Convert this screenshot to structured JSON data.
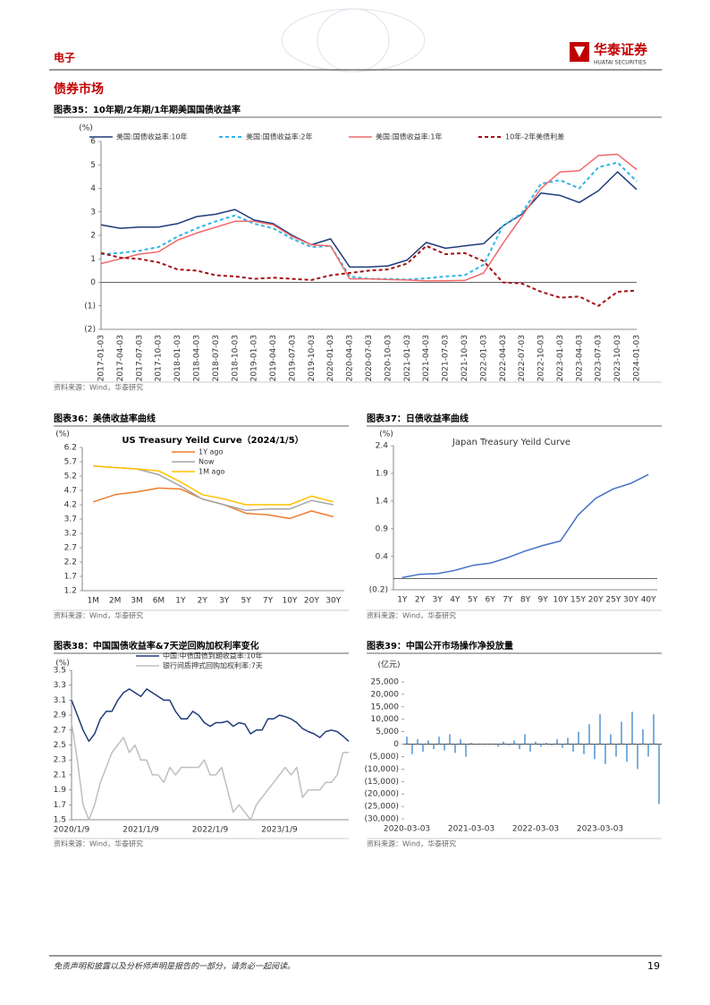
{
  "header": {
    "section": "电子",
    "logo": "华泰证券",
    "logo_en": "HUATAI SECURITIES"
  },
  "title": "债券市场",
  "chart_data": [
    {
      "type": "line",
      "caption": "图表35：10年期/2年期/1年期美国国债收益率",
      "source": "资料来源：Wind，华泰研究",
      "y_label": "(%)",
      "categories": [
        "2017-01-03",
        "2017-04-03",
        "2017-07-03",
        "2017-10-03",
        "2018-01-03",
        "2018-04-03",
        "2018-07-03",
        "2018-10-03",
        "2019-01-03",
        "2019-04-03",
        "2019-07-03",
        "2019-10-03",
        "2020-01-03",
        "2020-04-03",
        "2020-07-03",
        "2020-10-03",
        "2021-01-03",
        "2021-04-03",
        "2021-07-03",
        "2021-10-03",
        "2022-01-03",
        "2022-04-03",
        "2022-07-03",
        "2022-10-03",
        "2023-01-03",
        "2023-04-03",
        "2023-07-03",
        "2023-10-03",
        "2024-01-03"
      ],
      "series": [
        {
          "name": "美国:国债收益率:10年",
          "color": "#1f3b7a",
          "dash": false,
          "values": [
            2.45,
            2.3,
            2.35,
            2.35,
            2.5,
            2.8,
            2.9,
            3.1,
            2.65,
            2.5,
            2.0,
            1.6,
            1.85,
            0.65,
            0.65,
            0.7,
            0.95,
            1.7,
            1.45,
            1.55,
            1.65,
            2.4,
            2.9,
            3.8,
            3.7,
            3.4,
            3.9,
            4.7,
            3.95
          ]
        },
        {
          "name": "美国:国债收益率:2年",
          "color": "#33b5e5",
          "dash": true,
          "values": [
            1.2,
            1.25,
            1.35,
            1.5,
            1.95,
            2.3,
            2.6,
            2.85,
            2.5,
            2.3,
            1.85,
            1.5,
            1.55,
            0.25,
            0.15,
            0.15,
            0.12,
            0.17,
            0.25,
            0.3,
            0.75,
            2.4,
            2.95,
            4.2,
            4.35,
            4.0,
            4.9,
            5.1,
            4.3
          ]
        },
        {
          "name": "美国:国债收益率:1年",
          "color": "#f0686a",
          "dash": false,
          "values": [
            0.8,
            1.0,
            1.2,
            1.3,
            1.8,
            2.1,
            2.35,
            2.6,
            2.6,
            2.45,
            1.95,
            1.6,
            1.55,
            0.15,
            0.15,
            0.12,
            0.1,
            0.06,
            0.07,
            0.08,
            0.4,
            1.65,
            2.8,
            4.0,
            4.7,
            4.75,
            5.4,
            5.45,
            4.8
          ]
        },
        {
          "name": "10年-2年美债利差",
          "color": "#a50f15",
          "dash": true,
          "values": [
            1.25,
            1.05,
            1.0,
            0.85,
            0.55,
            0.5,
            0.3,
            0.25,
            0.15,
            0.2,
            0.15,
            0.1,
            0.3,
            0.4,
            0.5,
            0.55,
            0.8,
            1.55,
            1.2,
            1.25,
            0.9,
            0.0,
            -0.05,
            -0.4,
            -0.65,
            -0.6,
            -1.0,
            -0.4,
            -0.35
          ]
        }
      ],
      "ylim": [
        -2,
        6
      ],
      "yticks": [
        {
          "value": -2,
          "label": "(2)"
        },
        {
          "value": -1,
          "label": "(1)"
        },
        0,
        1,
        2,
        3,
        4,
        5,
        6
      ]
    },
    {
      "type": "line",
      "caption": "图表36：美债收益率曲线",
      "source": "资料来源：Wind，华泰研究",
      "y_label": "(%)",
      "title": "US Treasury Yeild Curve（2024/1/5）",
      "categories": [
        "1M",
        "2M",
        "3M",
        "6M",
        "1Y",
        "2Y",
        "3Y",
        "5Y",
        "7Y",
        "10Y",
        "20Y",
        "30Y"
      ],
      "series": [
        {
          "name": "1Y ago",
          "color": "#ed7d31",
          "dash": false,
          "values": [
            4.3,
            4.55,
            4.65,
            4.78,
            4.75,
            4.4,
            4.2,
            3.9,
            3.85,
            3.72,
            3.98,
            3.78
          ]
        },
        {
          "name": "Now",
          "color": "#a5a5a5",
          "dash": false,
          "values": [
            5.55,
            5.5,
            5.45,
            5.25,
            4.85,
            4.4,
            4.2,
            4.0,
            4.05,
            4.05,
            4.35,
            4.2
          ]
        },
        {
          "name": "1M ago",
          "color": "#ffc000",
          "dash": false,
          "values": [
            5.55,
            5.5,
            5.45,
            5.38,
            5.0,
            4.55,
            4.4,
            4.2,
            4.2,
            4.2,
            4.5,
            4.3
          ]
        }
      ],
      "ylim": [
        1.2,
        6.2
      ],
      "yticks": [
        1.2,
        1.7,
        2.2,
        2.7,
        3.2,
        3.7,
        4.2,
        4.7,
        5.2,
        5.7,
        6.2
      ]
    },
    {
      "type": "line",
      "caption": "图表37：日债收益率曲线",
      "source": "资料来源：Wind，华泰研究",
      "y_label": "(%)",
      "title": "Japan Treasury Yeild Curve",
      "categories": [
        "1Y",
        "2Y",
        "3Y",
        "4Y",
        "5Y",
        "6Y",
        "7Y",
        "8Y",
        "9Y",
        "10Y",
        "15Y",
        "20Y",
        "25Y",
        "30Y",
        "40Y"
      ],
      "values": [
        0.02,
        0.08,
        0.09,
        0.15,
        0.24,
        0.28,
        0.38,
        0.5,
        0.6,
        0.68,
        1.15,
        1.45,
        1.62,
        1.72,
        1.88
      ],
      "color": "#4472c4",
      "ylim": [
        -0.2,
        2.4
      ],
      "yticks": [
        {
          "value": -0.2,
          "label": "(0.2)"
        },
        0.4,
        0.9,
        1.4,
        1.9,
        2.4
      ]
    },
    {
      "type": "line",
      "caption": "图表38：中国国债收益率&7天逆回购加权利率变化",
      "source": "资料来源：Wind，华泰研究",
      "y_label": "(%)",
      "categories": [
        "2020/1/9",
        null,
        null,
        null,
        null,
        null,
        null,
        null,
        null,
        null,
        null,
        null,
        "2021/1/9",
        null,
        null,
        null,
        null,
        null,
        null,
        null,
        null,
        null,
        null,
        null,
        "2022/1/9",
        null,
        null,
        null,
        null,
        null,
        null,
        null,
        null,
        null,
        null,
        null,
        "2023/1/9",
        null,
        null,
        null,
        null,
        null,
        null,
        null,
        null,
        null,
        null,
        null,
        null
      ],
      "series": [
        {
          "name": "中国:中债国债到期收益率:10年",
          "color": "#1f3b7a",
          "dash": false,
          "values": [
            3.1,
            2.9,
            2.7,
            2.55,
            2.65,
            2.85,
            2.95,
            2.95,
            3.1,
            3.2,
            3.25,
            3.2,
            3.15,
            3.25,
            3.2,
            3.15,
            3.1,
            3.1,
            2.95,
            2.85,
            2.85,
            2.95,
            2.9,
            2.8,
            2.75,
            2.8,
            2.8,
            2.82,
            2.75,
            2.8,
            2.78,
            2.65,
            2.7,
            2.7,
            2.85,
            2.85,
            2.9,
            2.88,
            2.85,
            2.8,
            2.72,
            2.68,
            2.65,
            2.6,
            2.68,
            2.7,
            2.68,
            2.62,
            2.55
          ]
        },
        {
          "name": "银行间质押式回购加权利率:7天",
          "color": "#bfbfbf",
          "dash": false,
          "values": [
            2.8,
            2.3,
            1.7,
            1.5,
            1.7,
            2.0,
            2.2,
            2.4,
            2.5,
            2.6,
            2.4,
            2.5,
            2.3,
            2.3,
            2.1,
            2.1,
            2.0,
            2.2,
            2.1,
            2.2,
            2.2,
            2.2,
            2.2,
            2.3,
            2.1,
            2.1,
            2.2,
            1.9,
            1.6,
            1.7,
            1.6,
            1.5,
            1.7,
            1.8,
            1.9,
            2.0,
            2.1,
            2.2,
            2.1,
            2.2,
            1.8,
            1.9,
            1.9,
            1.9,
            2.0,
            2.0,
            2.1,
            2.4,
            2.4
          ]
        }
      ],
      "ylim": [
        1.5,
        3.5
      ],
      "yticks": [
        1.5,
        1.7,
        1.9,
        2.1,
        2.3,
        2.5,
        2.7,
        2.9,
        3.1,
        3.3,
        3.5
      ]
    },
    {
      "type": "bar",
      "caption": "图表39：中国公开市场操作净投放量",
      "source": "资料来源：Wind，华泰研究",
      "y_label": "(亿元)",
      "color": "#5b9bd5",
      "categories": [
        "2020-03-03",
        null,
        null,
        null,
        null,
        null,
        null,
        null,
        null,
        null,
        null,
        null,
        "2021-03-03",
        null,
        null,
        null,
        null,
        null,
        null,
        null,
        null,
        null,
        null,
        null,
        "2022-03-03",
        null,
        null,
        null,
        null,
        null,
        null,
        null,
        null,
        null,
        null,
        null,
        "2023-03-03",
        null,
        null,
        null,
        null,
        null,
        null,
        null,
        null,
        null,
        null,
        null
      ],
      "values": [
        3000,
        -4000,
        2000,
        -3000,
        1500,
        -2000,
        3000,
        -2500,
        4000,
        -3500,
        2000,
        -5000,
        500,
        -300,
        200,
        -200,
        300,
        -1000,
        1000,
        -500,
        1500,
        -2000,
        4000,
        -3000,
        1000,
        -1000,
        500,
        -500,
        2000,
        -1500,
        2500,
        -3000,
        5000,
        -4000,
        8000,
        -6000,
        12000,
        -8000,
        4000,
        -5000,
        9000,
        -7000,
        13000,
        -10000,
        6000,
        -5000,
        12000,
        -24000
      ],
      "ylim": [
        -30000,
        25000
      ],
      "yticks": [
        {
          "value": -30000,
          "label": "(30,000)"
        },
        {
          "value": -25000,
          "label": "(25,000)"
        },
        {
          "value": -20000,
          "label": "(20,000)"
        },
        {
          "value": -15000,
          "label": "(15,000)"
        },
        {
          "value": -10000,
          "label": "(10,000)"
        },
        {
          "value": -5000,
          "label": "(5,000)"
        },
        0,
        {
          "value": 5000,
          "label": "5,000"
        },
        {
          "value": 10000,
          "label": "10,000"
        },
        {
          "value": 15000,
          "label": "15,000"
        },
        {
          "value": 20000,
          "label": "20,000"
        },
        {
          "value": 25000,
          "label": "25,000"
        }
      ]
    }
  ],
  "footer": {
    "disclaimer": "免责声明和披露以及分析师声明是报告的一部分，请务必一起阅读。",
    "page": "19"
  }
}
